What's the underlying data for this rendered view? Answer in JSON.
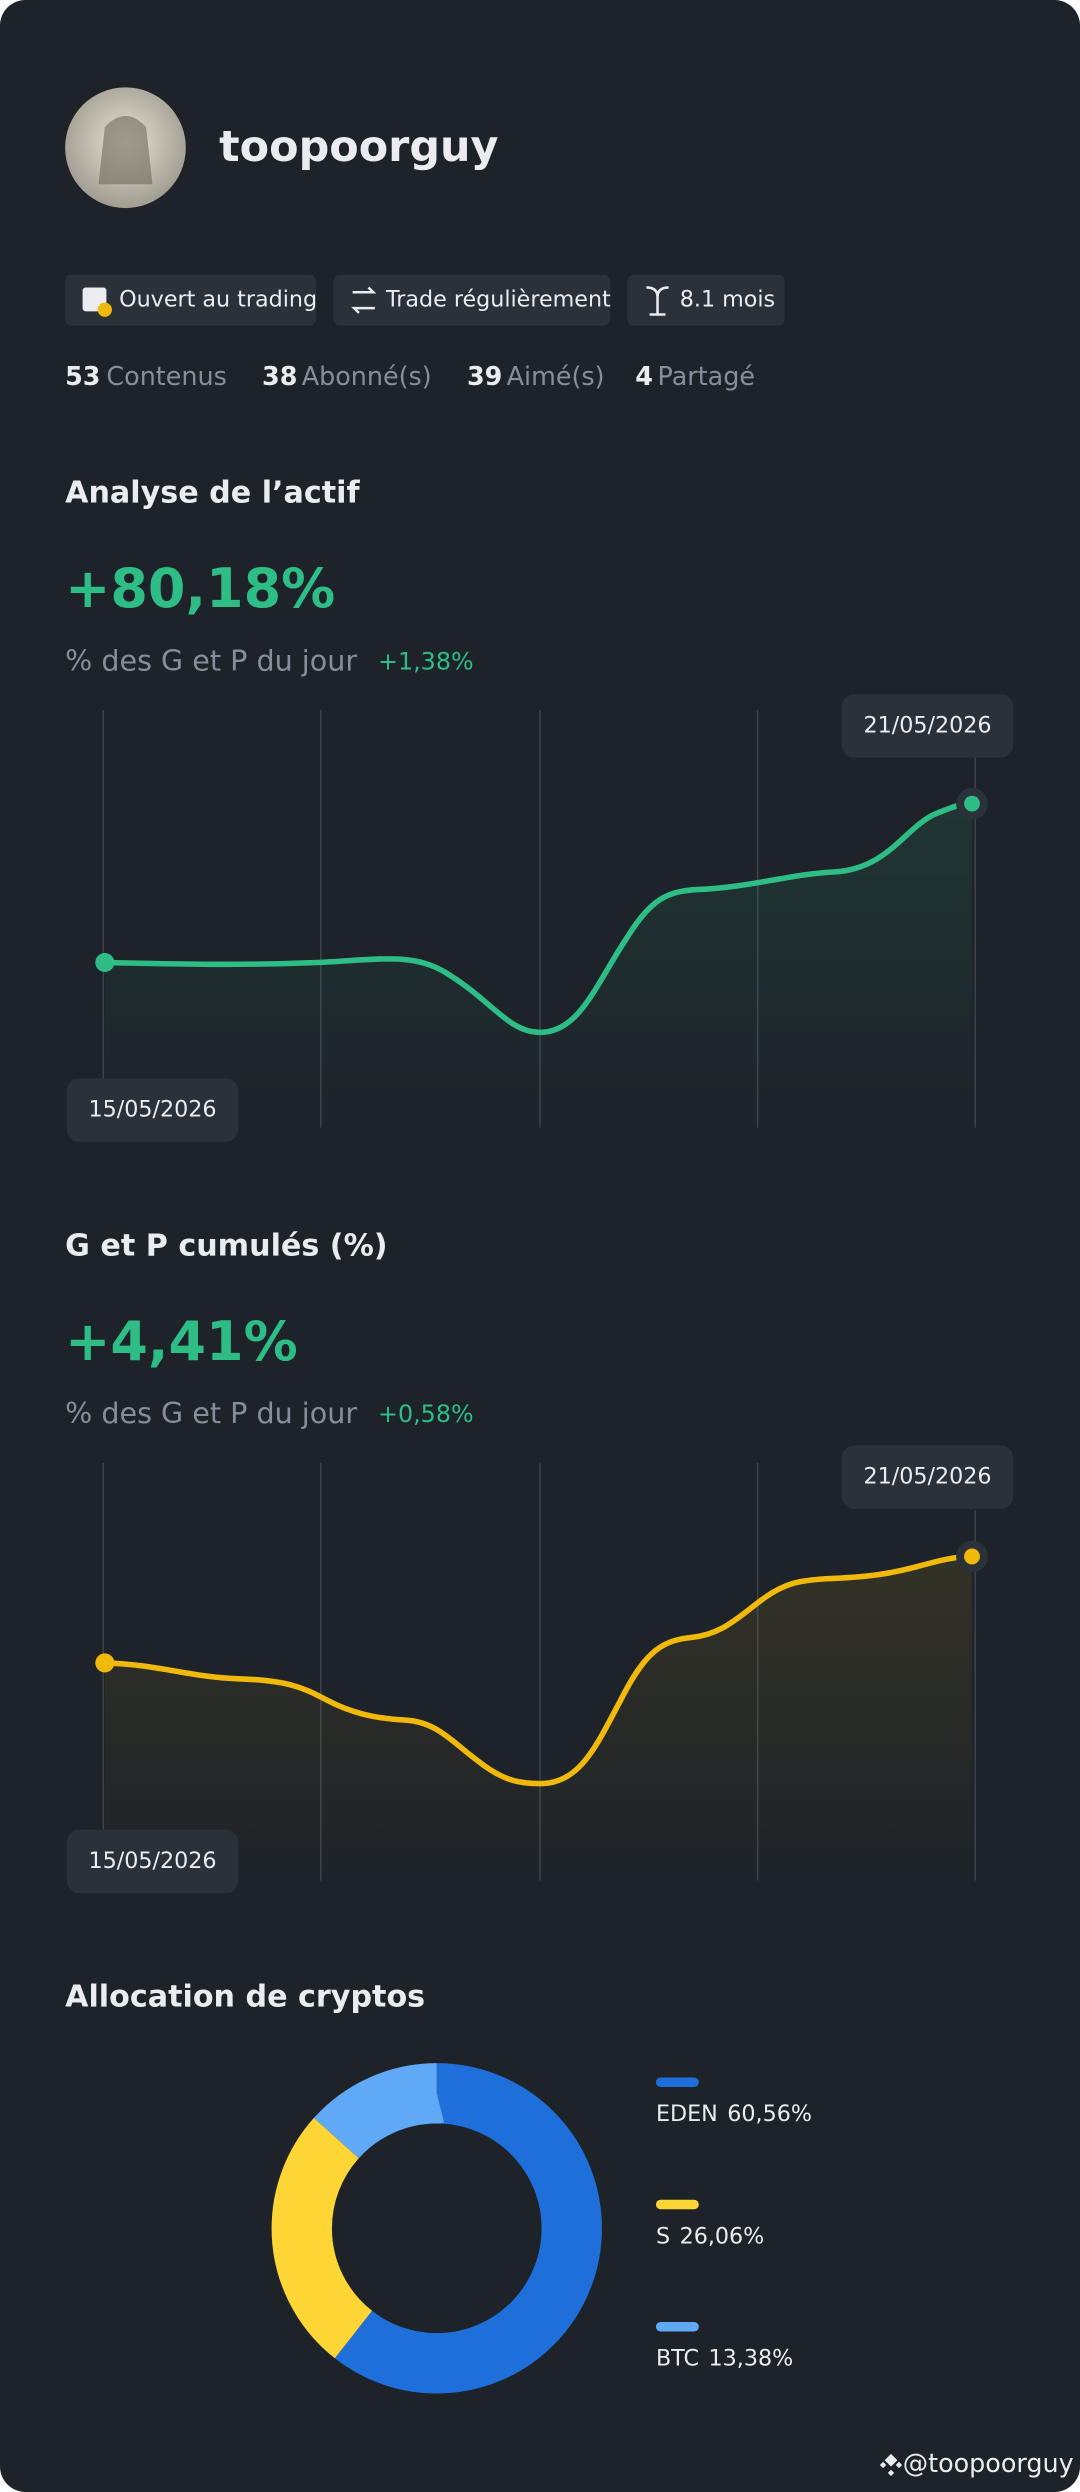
{
  "profile": {
    "username": "toopoorguy",
    "badges": [
      "Ouvert au trading",
      "Trade régulièrement",
      "8.1 mois"
    ],
    "stats": [
      {
        "value": 53,
        "label": "Contenus"
      },
      {
        "value": 38,
        "label": "Abonné(s)"
      },
      {
        "value": 39,
        "label": "Aimé(s)"
      },
      {
        "value": 4,
        "label": "Partagé"
      }
    ]
  },
  "asset_analysis": {
    "title": "Analyse de l’actif",
    "value": "+80,18%",
    "daily_label": "% des G et P du jour",
    "daily_value": "+1,38%",
    "start_date": "15/05/2026",
    "end_date": "21/05/2026"
  },
  "cumulative_pnl": {
    "title": "G et P cumulés (%)",
    "value": "+4,41%",
    "daily_label": "% des G et P du jour",
    "daily_value": "+0,58%",
    "start_date": "15/05/2026",
    "end_date": "21/05/2026"
  },
  "chart_data": {
    "type": "pie",
    "title": "Allocation de cryptos",
    "categories": [
      "EDEN",
      "S",
      "BTC"
    ],
    "values": [
      60.56,
      26.06,
      13.38
    ],
    "value_labels": [
      "60,56%",
      "26,06%",
      "13,38%"
    ],
    "colors": [
      "#1f6fdb",
      "#fdd535",
      "#5fa9f6"
    ]
  },
  "watermark": "@toopoorguy"
}
